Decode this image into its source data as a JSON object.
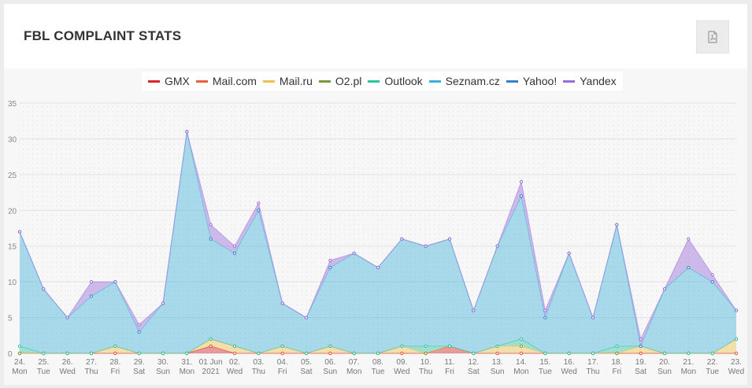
{
  "title": "FBL COMPLAINT STATS",
  "pdf_icon": "pdf-file-icon",
  "chart_data": {
    "type": "area",
    "stacked": true,
    "categories": [
      [
        "24.",
        "Mon"
      ],
      [
        "25.",
        "Tue"
      ],
      [
        "26.",
        "Wed"
      ],
      [
        "27.",
        "Thu"
      ],
      [
        "28.",
        "Fri"
      ],
      [
        "29.",
        "Sat"
      ],
      [
        "30.",
        "Sun"
      ],
      [
        "31.",
        "Mon"
      ],
      [
        "01 Jun",
        "2021"
      ],
      [
        "02.",
        "Wed"
      ],
      [
        "03.",
        "Thu"
      ],
      [
        "04.",
        "Fri"
      ],
      [
        "05.",
        "Sat"
      ],
      [
        "06.",
        "Sun"
      ],
      [
        "07.",
        "Mon"
      ],
      [
        "08.",
        "Tue"
      ],
      [
        "09.",
        "Wed"
      ],
      [
        "10.",
        "Thu"
      ],
      [
        "11.",
        "Fri"
      ],
      [
        "12.",
        "Sat"
      ],
      [
        "13.",
        "Sun"
      ],
      [
        "14.",
        "Mon"
      ],
      [
        "15.",
        "Tue"
      ],
      [
        "16.",
        "Wed"
      ],
      [
        "17.",
        "Thu"
      ],
      [
        "18.",
        "Fri"
      ],
      [
        "19.",
        "Sat"
      ],
      [
        "20.",
        "Sun"
      ],
      [
        "21.",
        "Mon"
      ],
      [
        "22.",
        "Tue"
      ],
      [
        "23.",
        "Wed"
      ]
    ],
    "ylim": [
      0,
      35
    ],
    "yticks": [
      0,
      5,
      10,
      15,
      20,
      25,
      30,
      35
    ],
    "legend_position": "top",
    "grid": true,
    "series": [
      {
        "name": "GMX",
        "color": "#d62728",
        "values": [
          0,
          0,
          0,
          0,
          0,
          0,
          0,
          0,
          1,
          0,
          0,
          0,
          0,
          0,
          0,
          0,
          0,
          0,
          1,
          0,
          0,
          0,
          0,
          0,
          0,
          0,
          0,
          0,
          0,
          0,
          0
        ]
      },
      {
        "name": "Mail.com",
        "color": "#e8603c",
        "values": [
          0,
          0,
          0,
          0,
          0,
          0,
          0,
          0,
          0,
          0,
          0,
          0,
          0,
          0,
          0,
          0,
          0,
          0,
          0,
          0,
          0,
          0,
          0,
          0,
          0,
          0,
          0,
          0,
          0,
          0,
          0
        ]
      },
      {
        "name": "Mail.ru",
        "color": "#f0c050",
        "values": [
          0,
          0,
          0,
          0,
          1,
          0,
          0,
          0,
          1,
          1,
          0,
          1,
          0,
          1,
          0,
          0,
          1,
          0,
          0,
          0,
          1,
          1,
          0,
          0,
          0,
          0,
          1,
          0,
          0,
          0,
          2
        ]
      },
      {
        "name": "O2.pl",
        "color": "#7a9a3a",
        "values": [
          0,
          0,
          0,
          0,
          0,
          0,
          0,
          0,
          0,
          0,
          0,
          0,
          0,
          0,
          0,
          0,
          0,
          0,
          0,
          0,
          0,
          0,
          0,
          0,
          0,
          0,
          0,
          0,
          0,
          0,
          0
        ]
      },
      {
        "name": "Outlook",
        "color": "#2ec4a0",
        "values": [
          1,
          0,
          0,
          0,
          0,
          0,
          0,
          0,
          0,
          0,
          0,
          0,
          0,
          0,
          0,
          0,
          0,
          1,
          0,
          0,
          0,
          1,
          0,
          0,
          0,
          1,
          0,
          0,
          0,
          0,
          0
        ]
      },
      {
        "name": "Seznam.cz",
        "color": "#3ab0d8",
        "values": [
          16,
          9,
          5,
          8,
          9,
          3,
          7,
          31,
          14,
          13,
          20,
          6,
          5,
          11,
          14,
          12,
          15,
          14,
          15,
          6,
          14,
          20,
          5,
          14,
          5,
          17,
          0,
          9,
          12,
          10,
          4
        ]
      },
      {
        "name": "Yahoo!",
        "color": "#3a80c8",
        "values": [
          0,
          0,
          0,
          0,
          0,
          0,
          0,
          0,
          0,
          0,
          0,
          0,
          0,
          0,
          0,
          0,
          0,
          0,
          0,
          0,
          0,
          0,
          0,
          0,
          0,
          0,
          0,
          0,
          0,
          0,
          0
        ]
      },
      {
        "name": "Yandex",
        "color": "#9b6ddc",
        "values": [
          0,
          0,
          0,
          2,
          0,
          1,
          0,
          0,
          2,
          1,
          1,
          0,
          0,
          1,
          0,
          0,
          0,
          0,
          0,
          0,
          0,
          2,
          1,
          0,
          0,
          0,
          1,
          0,
          4,
          1,
          0
        ]
      }
    ]
  }
}
